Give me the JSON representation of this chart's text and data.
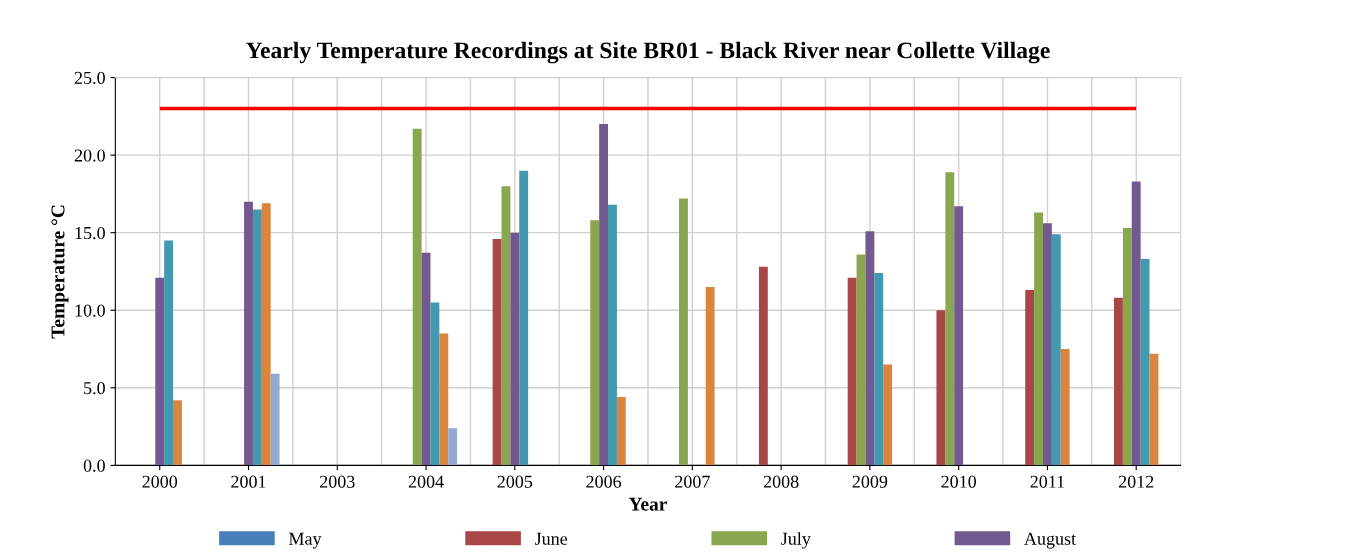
{
  "chart_data": {
    "type": "bar",
    "title": "Yearly Temperature Recordings at Site BR01 - Black River near Collette Village",
    "xlabel": "Year",
    "ylabel": "Temperature °C",
    "categories": [
      "2000",
      "2001",
      "2003",
      "2004",
      "2005",
      "2006",
      "2007",
      "2008",
      "2009",
      "2010",
      "2011",
      "2012"
    ],
    "series": [
      {
        "name": "May",
        "color": "#4a7ebb",
        "values": [
          null,
          null,
          null,
          null,
          null,
          null,
          null,
          null,
          null,
          null,
          null,
          null
        ]
      },
      {
        "name": "June",
        "color": "#a84745",
        "values": [
          null,
          null,
          null,
          null,
          14.6,
          null,
          null,
          12.8,
          12.1,
          10.0,
          11.3,
          10.8
        ]
      },
      {
        "name": "July",
        "color": "#8aa64e",
        "values": [
          null,
          null,
          null,
          21.7,
          18.0,
          15.8,
          17.2,
          null,
          13.6,
          18.9,
          16.3,
          15.3
        ]
      },
      {
        "name": "August",
        "color": "#72598f",
        "values": [
          12.1,
          17.0,
          null,
          13.7,
          15.0,
          22.0,
          null,
          null,
          15.1,
          16.7,
          15.6,
          18.3
        ]
      },
      {
        "color": "#4399b0",
        "values": [
          14.5,
          16.5,
          null,
          10.5,
          19.0,
          16.8,
          null,
          null,
          12.4,
          null,
          14.9,
          13.3
        ]
      },
      {
        "color": "#db843d",
        "values": [
          4.2,
          16.9,
          null,
          8.5,
          null,
          4.4,
          11.5,
          null,
          6.5,
          null,
          7.5,
          7.2
        ]
      },
      {
        "color": "#93a9d0",
        "values": [
          null,
          5.9,
          null,
          2.4,
          null,
          null,
          null,
          null,
          null,
          null,
          null,
          null
        ]
      }
    ],
    "ylim": [
      0,
      25
    ],
    "yticks": [
      {
        "value": 0,
        "label": "0.0"
      },
      {
        "value": 5,
        "label": "5.0"
      },
      {
        "value": 10,
        "label": "10.0"
      },
      {
        "value": 15,
        "label": "15.0"
      },
      {
        "value": 20,
        "label": "20.0"
      },
      {
        "value": 25,
        "label": "25.0"
      }
    ],
    "ref_lines": [
      {
        "axis": "y",
        "value": 23,
        "color": "#ff0000"
      }
    ],
    "grid": true,
    "legend": "bottom"
  }
}
